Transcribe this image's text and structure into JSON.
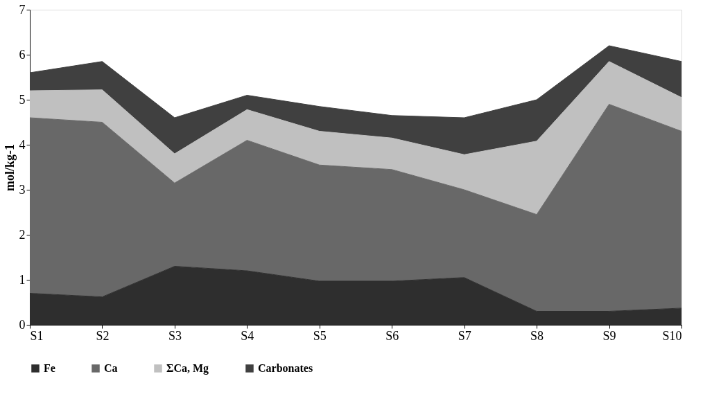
{
  "chart_data": {
    "type": "area",
    "stacked": true,
    "ylabel": "mol/kg-1",
    "categories": [
      "S1",
      "S2",
      "S3",
      "S4",
      "S5",
      "S6",
      "S7",
      "S8",
      "S9",
      "S10"
    ],
    "series": [
      {
        "name": "Fe",
        "color": "#2e2e2e",
        "values": [
          0.7,
          0.62,
          1.3,
          1.2,
          0.97,
          0.97,
          1.05,
          0.3,
          0.3,
          0.37
        ]
      },
      {
        "name": "Ca",
        "color": "#686868",
        "values": [
          3.9,
          3.88,
          1.85,
          2.9,
          2.58,
          2.48,
          1.95,
          2.15,
          4.6,
          3.93
        ]
      },
      {
        "name": "ΣCa, Mg",
        "color": "#c0c0c0",
        "values": [
          0.6,
          0.72,
          0.65,
          0.68,
          0.75,
          0.7,
          0.78,
          1.63,
          0.95,
          0.75
        ]
      },
      {
        "name": "Carbonates",
        "color": "#404040",
        "values": [
          0.4,
          0.63,
          0.8,
          0.32,
          0.55,
          0.5,
          0.82,
          0.92,
          0.35,
          0.8
        ]
      }
    ],
    "ylim": [
      0,
      7
    ],
    "yticks": [
      0,
      1,
      2,
      3,
      4,
      5,
      6,
      7
    ],
    "grid": false,
    "legend": "bottom"
  }
}
